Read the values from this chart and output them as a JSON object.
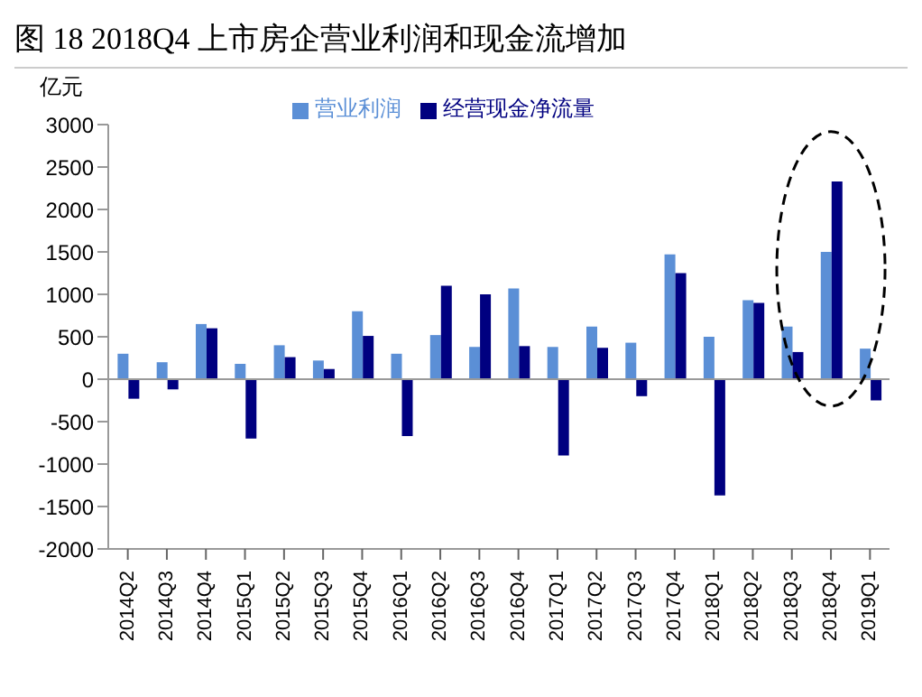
{
  "chart_data": {
    "type": "bar",
    "title": "图 18   2018Q4 上市房企营业利润和现金流增加",
    "ylabel": "亿元",
    "categories": [
      "2014Q2",
      "2014Q3",
      "2014Q4",
      "2015Q1",
      "2015Q2",
      "2015Q3",
      "2015Q4",
      "2016Q1",
      "2016Q2",
      "2016Q3",
      "2016Q4",
      "2017Q1",
      "2017Q2",
      "2017Q3",
      "2017Q4",
      "2018Q1",
      "2018Q2",
      "2018Q3",
      "2018Q4",
      "2019Q1"
    ],
    "series": [
      {
        "name": "营业利润",
        "color": "#5b8fd6",
        "values": [
          300,
          200,
          650,
          180,
          400,
          220,
          800,
          300,
          520,
          380,
          1070,
          380,
          620,
          430,
          1470,
          500,
          930,
          620,
          1500,
          360
        ]
      },
      {
        "name": "经营现金净流量",
        "color": "#000080",
        "values": [
          -230,
          -120,
          600,
          -700,
          260,
          120,
          510,
          -670,
          1100,
          1000,
          390,
          -900,
          370,
          -200,
          1250,
          -1370,
          900,
          320,
          2330,
          -250
        ]
      }
    ],
    "ylim": [
      -2000,
      3000
    ],
    "yticks": [
      -2000,
      -1500,
      -1000,
      -500,
      0,
      500,
      1000,
      1500,
      2000,
      2500,
      3000
    ],
    "legend": "top"
  }
}
